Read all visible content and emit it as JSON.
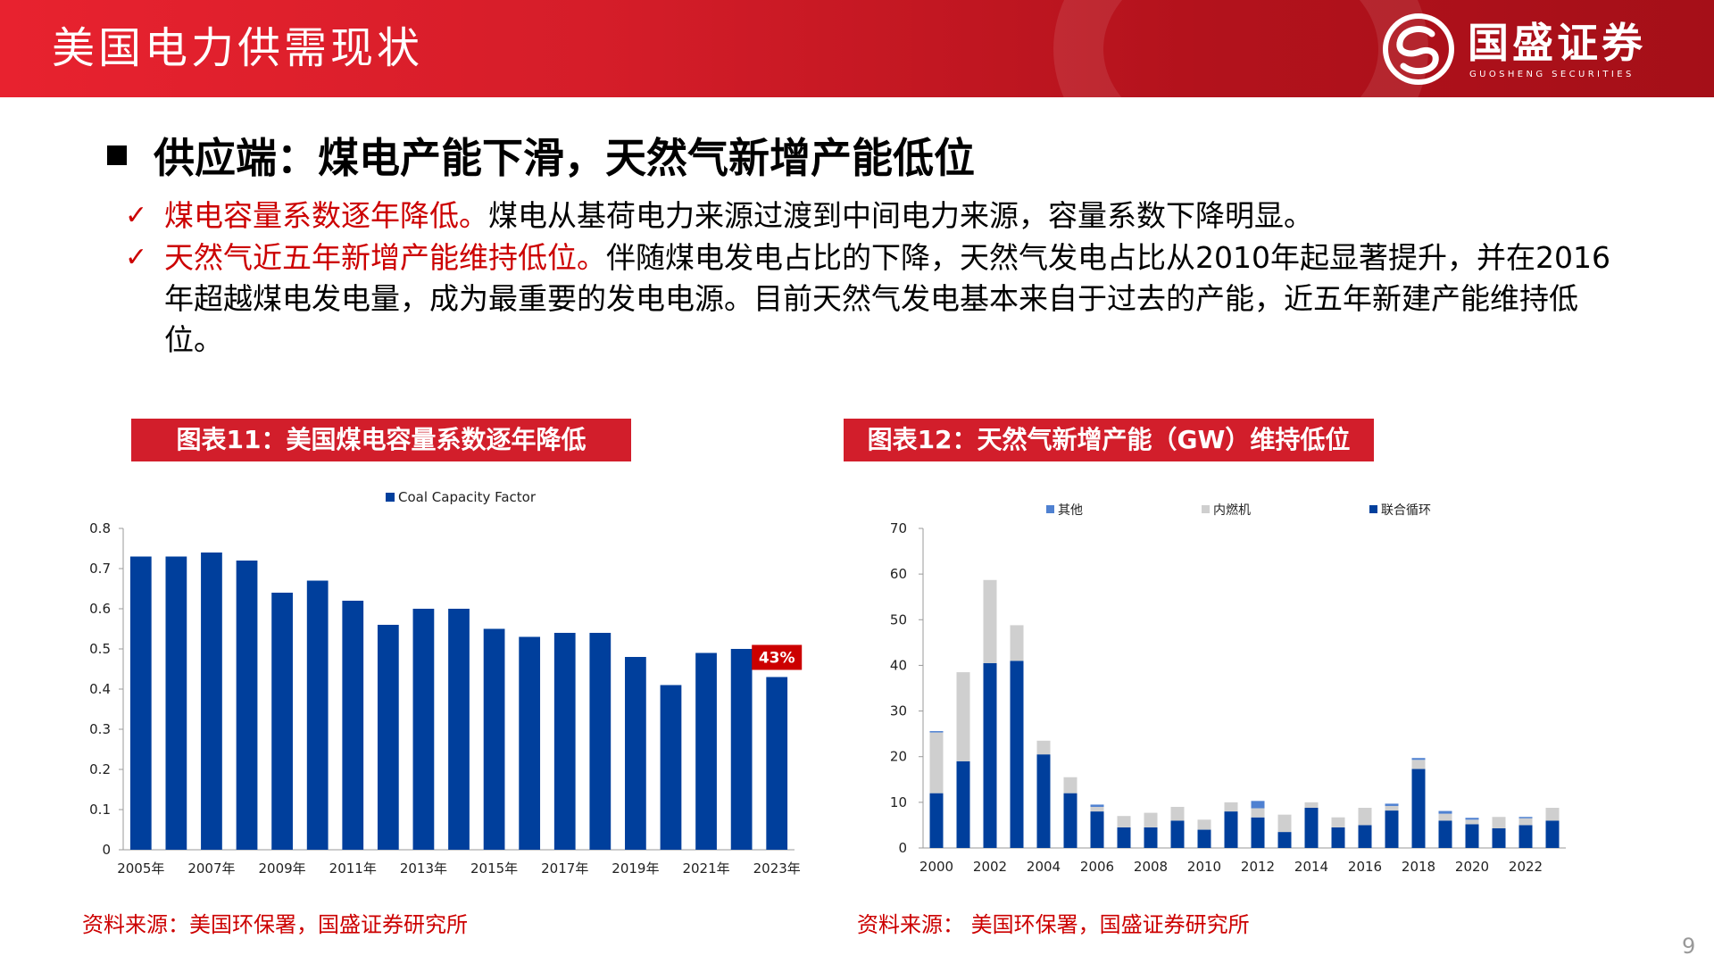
{
  "header": {
    "title": "美国电力供需现状",
    "logo": {
      "name_cn": "国盛证券",
      "name_en": "GUOSHENG SECURITIES"
    }
  },
  "section": {
    "title": "供应端：煤电产能下滑，天然气新增产能低位"
  },
  "bullets": [
    {
      "check": "✓",
      "highlight": "煤电容量系数逐年降低。",
      "text": "煤电从基荷电力来源过渡到中间电力来源，容量系数下降明显。"
    },
    {
      "check": "✓",
      "highlight": "天然气近五年新增产能维持低位。",
      "text": "伴随煤电发电占比的下降，天然气发电占比从2010年起显著提升，并在2016年超越煤电发电量，成为最重要的发电电源。目前天然气发电基本来自于过去的产能，近五年新建产能维持低位。"
    }
  ],
  "figures": [
    {
      "caption": "图表11：美国煤电容量系数逐年降低",
      "source": "资料来源：美国环保署，国盛证券研究所"
    },
    {
      "caption": "图表12：天然气新增产能（GW）维持低位",
      "source": "资料来源：  美国环保署，国盛证券研究所"
    }
  ],
  "page_number": "9",
  "colors": {
    "brand_red": "#d21e2b",
    "bar_blue": "#003f9c",
    "grey": "#cfcfcf",
    "other_blue": "#4f81d1",
    "highlight_red": "#cc0000"
  },
  "chart_data": [
    {
      "type": "bar",
      "legend": [
        "Coal Capacity Factor"
      ],
      "legend_position": "top",
      "categories": [
        "2005年",
        "2006年",
        "2007年",
        "2008年",
        "2009年",
        "2010年",
        "2011年",
        "2012年",
        "2013年",
        "2014年",
        "2015年",
        "2016年",
        "2017年",
        "2018年",
        "2019年",
        "2020年",
        "2021年",
        "2022年",
        "2023年"
      ],
      "tick_labels": [
        "2005年",
        "2007年",
        "2009年",
        "2011年",
        "2013年",
        "2015年",
        "2017年",
        "2019年",
        "2021年",
        "2023年"
      ],
      "series": [
        {
          "name": "Coal Capacity Factor",
          "values": [
            0.73,
            0.73,
            0.74,
            0.72,
            0.64,
            0.67,
            0.62,
            0.56,
            0.6,
            0.6,
            0.55,
            0.53,
            0.54,
            0.54,
            0.48,
            0.41,
            0.49,
            0.5,
            0.43
          ]
        }
      ],
      "ylim": [
        0,
        0.8
      ],
      "yticks": [
        "0",
        "0.1",
        "0.2",
        "0.3",
        "0.4",
        "0.5",
        "0.6",
        "0.7",
        "0.8"
      ],
      "annotation": {
        "category": "2023年",
        "text": "43%"
      },
      "grid": false
    },
    {
      "type": "bar",
      "stacked": true,
      "legend": [
        "其他",
        "内燃机",
        "联合循环"
      ],
      "legend_position": "top",
      "categories": [
        "2000",
        "2001",
        "2002",
        "2003",
        "2004",
        "2005",
        "2006",
        "2007",
        "2008",
        "2009",
        "2010",
        "2011",
        "2012",
        "2013",
        "2014",
        "2015",
        "2016",
        "2017",
        "2018",
        "2019",
        "2020",
        "2021",
        "2022",
        "2023"
      ],
      "tick_labels": [
        "2000",
        "2002",
        "2004",
        "2006",
        "2008",
        "2010",
        "2012",
        "2014",
        "2016",
        "2018",
        "2020",
        "2022"
      ],
      "series": [
        {
          "name": "联合循环",
          "values": [
            12,
            19,
            40.5,
            41,
            20.5,
            12,
            8,
            4.5,
            4.5,
            6,
            4,
            8,
            6.7,
            3.5,
            8.8,
            4.5,
            5,
            8.2,
            17.3,
            6,
            5.2,
            4.3,
            5,
            6
          ]
        },
        {
          "name": "内燃机",
          "values": [
            13.3,
            19.5,
            18.2,
            7.8,
            3,
            3.5,
            1,
            2.5,
            3.2,
            3,
            2.2,
            2,
            2,
            3.8,
            1.2,
            2.2,
            3.8,
            1,
            2,
            1.5,
            1,
            2.5,
            1.5,
            2.8
          ]
        },
        {
          "name": "其他",
          "values": [
            0.3,
            0,
            0,
            0,
            0,
            0,
            0.5,
            0,
            0,
            0,
            0,
            0,
            1.6,
            0,
            0,
            0,
            0,
            0.5,
            0.4,
            0.6,
            0.4,
            0,
            0.3,
            0
          ]
        }
      ],
      "ylim": [
        0,
        70
      ],
      "yticks": [
        "0",
        "10",
        "20",
        "30",
        "40",
        "50",
        "60",
        "70"
      ],
      "grid": false
    }
  ]
}
